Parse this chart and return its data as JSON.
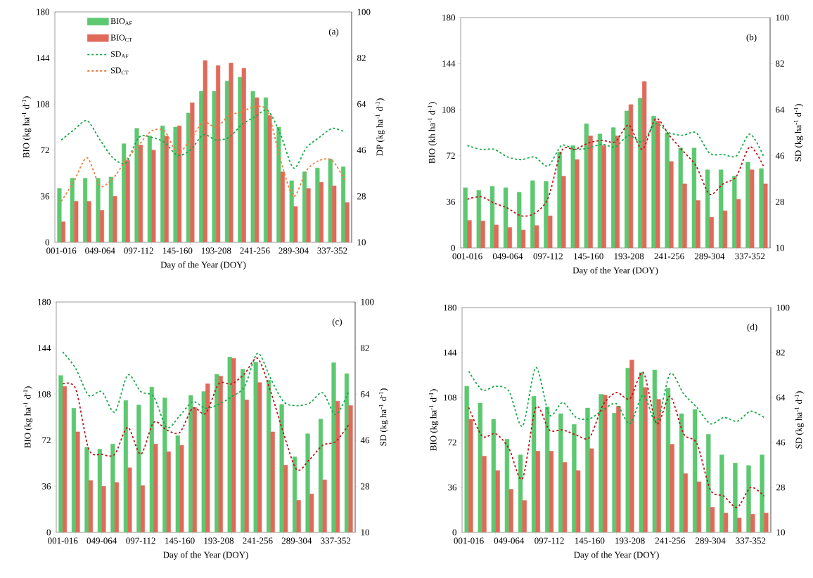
{
  "chart_data": [
    {
      "type": "bar",
      "categories": [
        "001-016",
        null,
        null,
        "049-064",
        null,
        null,
        "097-112",
        null,
        null,
        "145-160",
        null,
        null,
        "193-208",
        null,
        null,
        "241-256",
        null,
        null,
        "289-304",
        null,
        null,
        "337-352",
        null
      ],
      "xlabel": "Day of the Year (DOY)",
      "ylabel": "BIO (kg ha$^{-1}$ d$^{-1}$)",
      "y2label": "DP (kg ha$^{-1}$ d$^{-1}$)",
      "ylim": [
        0,
        180
      ],
      "yticks": [
        0,
        36,
        72,
        108,
        144,
        180
      ],
      "y2lim": [
        10,
        100
      ],
      "y2ticks": [
        10,
        28,
        46,
        64,
        82,
        100
      ],
      "annotations": [
        "(a)"
      ],
      "legend": "top left",
      "series": [
        {
          "name": "BIO$_{AF}$",
          "color": "#5cc870",
          "values": [
            42,
            50,
            50,
            50,
            51,
            77,
            89,
            83,
            91,
            90,
            101,
            118,
            118,
            126,
            129,
            118,
            113,
            90,
            48,
            55,
            58,
            65,
            59
          ]
        },
        {
          "name": "BIO$_{CT}$",
          "color": "#e06a5a",
          "values": [
            16,
            32,
            32,
            25,
            36,
            64,
            76,
            72,
            83,
            91,
            109,
            142,
            138,
            140,
            136,
            113,
            99,
            55,
            28,
            42,
            47,
            44,
            31
          ]
        },
        {
          "name": "SD$_{AF}$",
          "type": "line",
          "axis": "y2",
          "line_style": "dashed",
          "color": "#1aa84a",
          "values": [
            50,
            54,
            57.5,
            50,
            43,
            41,
            51,
            51,
            49,
            44,
            46,
            52,
            50,
            51,
            56,
            59,
            61.5,
            52,
            39,
            47,
            51,
            54.5,
            53
          ]
        },
        {
          "name": "SD$_{CT}$",
          "type": "line",
          "axis": "y2",
          "line_style": "dashed",
          "color": "#f07c3c",
          "values": [
            26,
            34,
            43,
            32,
            35,
            42,
            48,
            53.5,
            53.5,
            45,
            50,
            57,
            55,
            59.5,
            61,
            63,
            61,
            42,
            28,
            38,
            42,
            42,
            34
          ]
        }
      ]
    },
    {
      "type": "bar",
      "categories": [
        "001-016",
        null,
        null,
        "049-064",
        null,
        null,
        "097-112",
        null,
        null,
        "145-160",
        null,
        null,
        "193-208",
        null,
        null,
        "241-256",
        null,
        null,
        "289-304",
        null,
        null,
        "337-352",
        null
      ],
      "xlabel": "Day of the Year (DOY)",
      "ylabel": "BIO (kh ha$^{-1}$ d$^{-1}$)",
      "y2label": "SD (kg ha$^{-1}$ d$^{-1}$)",
      "ylim": [
        0,
        180
      ],
      "yticks": [
        0,
        36,
        72,
        108,
        144,
        180
      ],
      "y2lim": [
        10,
        100
      ],
      "y2ticks": [
        10,
        28,
        46,
        64,
        82,
        100
      ],
      "annotations": [
        "(b)"
      ],
      "series": [
        {
          "color": "#5cc870",
          "values": [
            47,
            45,
            48,
            47,
            43.5,
            52.5,
            52,
            75,
            80,
            97,
            89,
            94,
            107,
            117,
            103,
            90,
            78,
            78,
            61,
            61,
            56,
            67,
            62
          ]
        },
        {
          "color": "#e06a5a",
          "values": [
            21.5,
            21,
            18,
            16,
            14,
            17.5,
            25,
            56,
            69,
            87.5,
            80,
            87.5,
            112,
            130,
            99,
            67.5,
            50,
            37,
            24,
            29,
            38,
            61,
            50
          ]
        },
        {
          "type": "line",
          "axis": "y2",
          "line_style": "dashed",
          "color": "#1aa84a",
          "values": [
            50,
            48.5,
            48.5,
            45.5,
            44.5,
            45.5,
            42,
            50,
            48.5,
            49,
            50.5,
            49.5,
            54,
            51.5,
            58.5,
            55,
            54,
            55,
            47,
            46.5,
            46,
            54.5,
            46
          ]
        },
        {
          "type": "line",
          "axis": "y2",
          "line_style": "dashed",
          "color": "#c0141a",
          "values": [
            29,
            30,
            27.5,
            25.5,
            22.5,
            23.5,
            29.5,
            48,
            48.5,
            51,
            52,
            51.5,
            58,
            48.5,
            60.5,
            54,
            48,
            42,
            31,
            35,
            38,
            49.5,
            42
          ]
        }
      ]
    },
    {
      "type": "bar",
      "categories": [
        "001-016",
        null,
        null,
        "049-064",
        null,
        null,
        "097-112",
        null,
        null,
        "145-160",
        null,
        null,
        "193-208",
        null,
        null,
        "241-256",
        null,
        null,
        "289-304",
        null,
        null,
        "337-352",
        null
      ],
      "xlabel": "Day of the Year (DOY)",
      "ylabel": "BIO (kg ha$^{-1}$ d$^{-1}$)",
      "y2label": "SD (kg ha$^{-1}$ d$^{-1}$)",
      "ylim": [
        0,
        180
      ],
      "yticks": [
        0,
        36,
        72,
        108,
        144,
        180
      ],
      "y2lim": [
        10,
        100
      ],
      "y2ticks": [
        10,
        28,
        46,
        64,
        82,
        100
      ],
      "annotations": [
        "(c)"
      ],
      "series": [
        {
          "color": "#5cc870",
          "values": [
            122.5,
            97,
            66.5,
            65,
            69,
            103,
            99.5,
            113.5,
            105,
            75.5,
            107,
            110,
            123.5,
            137,
            127.5,
            133,
            119,
            100,
            59,
            77,
            88.5,
            132.5,
            124
          ]
        },
        {
          "color": "#e06a5a",
          "values": [
            114,
            78.5,
            40.5,
            36,
            39,
            50.5,
            36.5,
            69,
            63,
            68,
            97.5,
            116,
            122,
            136,
            103.5,
            117,
            78.5,
            52.5,
            25,
            30,
            41,
            102.5,
            99
          ]
        },
        {
          "type": "line",
          "axis": "y2",
          "line_style": "dashed",
          "color": "#1aa84a",
          "values": [
            80.5,
            74,
            63.5,
            65,
            57,
            71.5,
            65,
            63,
            51,
            55.5,
            61,
            58.5,
            60,
            63,
            67,
            80,
            70,
            61,
            59.5,
            60.5,
            64.5,
            56,
            65
          ]
        },
        {
          "type": "line",
          "axis": "y2",
          "line_style": "dashed",
          "color": "#c0141a",
          "values": [
            68,
            66,
            42.5,
            40.5,
            40.5,
            51,
            40.5,
            53,
            50,
            49,
            58.5,
            56.5,
            68,
            68,
            72,
            78,
            65,
            48.5,
            34.5,
            38.5,
            44,
            45.5,
            52
          ]
        }
      ]
    },
    {
      "type": "bar",
      "categories": [
        "001-016",
        null,
        null,
        "049-064",
        null,
        null,
        "097-112",
        null,
        null,
        "145-160",
        null,
        null,
        "193-208",
        null,
        null,
        "241-256",
        null,
        null,
        "289-304",
        null,
        null,
        "337-352",
        null
      ],
      "xlabel": "Day of the Year (DOY)",
      "ylabel": "BIO (kg ha$^{-1}$ d$^{-1}$)",
      "y2label": "SD (kg ha$^{-1}$ d$^{-1}$)",
      "ylim": [
        0,
        180
      ],
      "yticks": [
        0,
        36,
        72,
        108,
        144,
        180
      ],
      "y2lim": [
        10,
        100
      ],
      "y2ticks": [
        10,
        28,
        46,
        64,
        82,
        100
      ],
      "annotations": [
        "(d)"
      ],
      "series": [
        {
          "color": "#5cc870",
          "values": [
            117,
            103.5,
            90.5,
            74.5,
            62,
            109,
            100.5,
            95,
            86.5,
            99.5,
            110.5,
            95.5,
            131.5,
            128,
            130,
            115.5,
            95,
            98.5,
            78.5,
            62,
            55.5,
            53.5,
            62
          ]
        },
        {
          "color": "#e06a5a",
          "values": [
            90.5,
            61,
            49.5,
            34.5,
            25.5,
            65,
            65,
            56,
            49.5,
            67,
            110,
            101,
            138,
            116,
            106.5,
            70.5,
            47,
            40.5,
            20,
            15.5,
            11.5,
            14.5,
            15.5
          ]
        },
        {
          "type": "line",
          "axis": "y2",
          "line_style": "dashed",
          "color": "#1aa84a",
          "values": [
            74.5,
            67,
            68.5,
            66.5,
            52.5,
            76,
            57,
            62,
            56,
            55.5,
            59,
            61.5,
            53.5,
            65,
            54,
            73.5,
            65.5,
            60,
            53.5,
            56,
            54.5,
            58.5,
            56
          ]
        },
        {
          "type": "line",
          "axis": "y2",
          "line_style": "dashed",
          "color": "#c0141a",
          "values": [
            60,
            48.5,
            49.5,
            43.5,
            31.5,
            60,
            51,
            51,
            49,
            48,
            61,
            66,
            63.5,
            74,
            53.5,
            64.5,
            49.5,
            45.5,
            27,
            24.5,
            20,
            28,
            24.5
          ]
        }
      ]
    }
  ]
}
